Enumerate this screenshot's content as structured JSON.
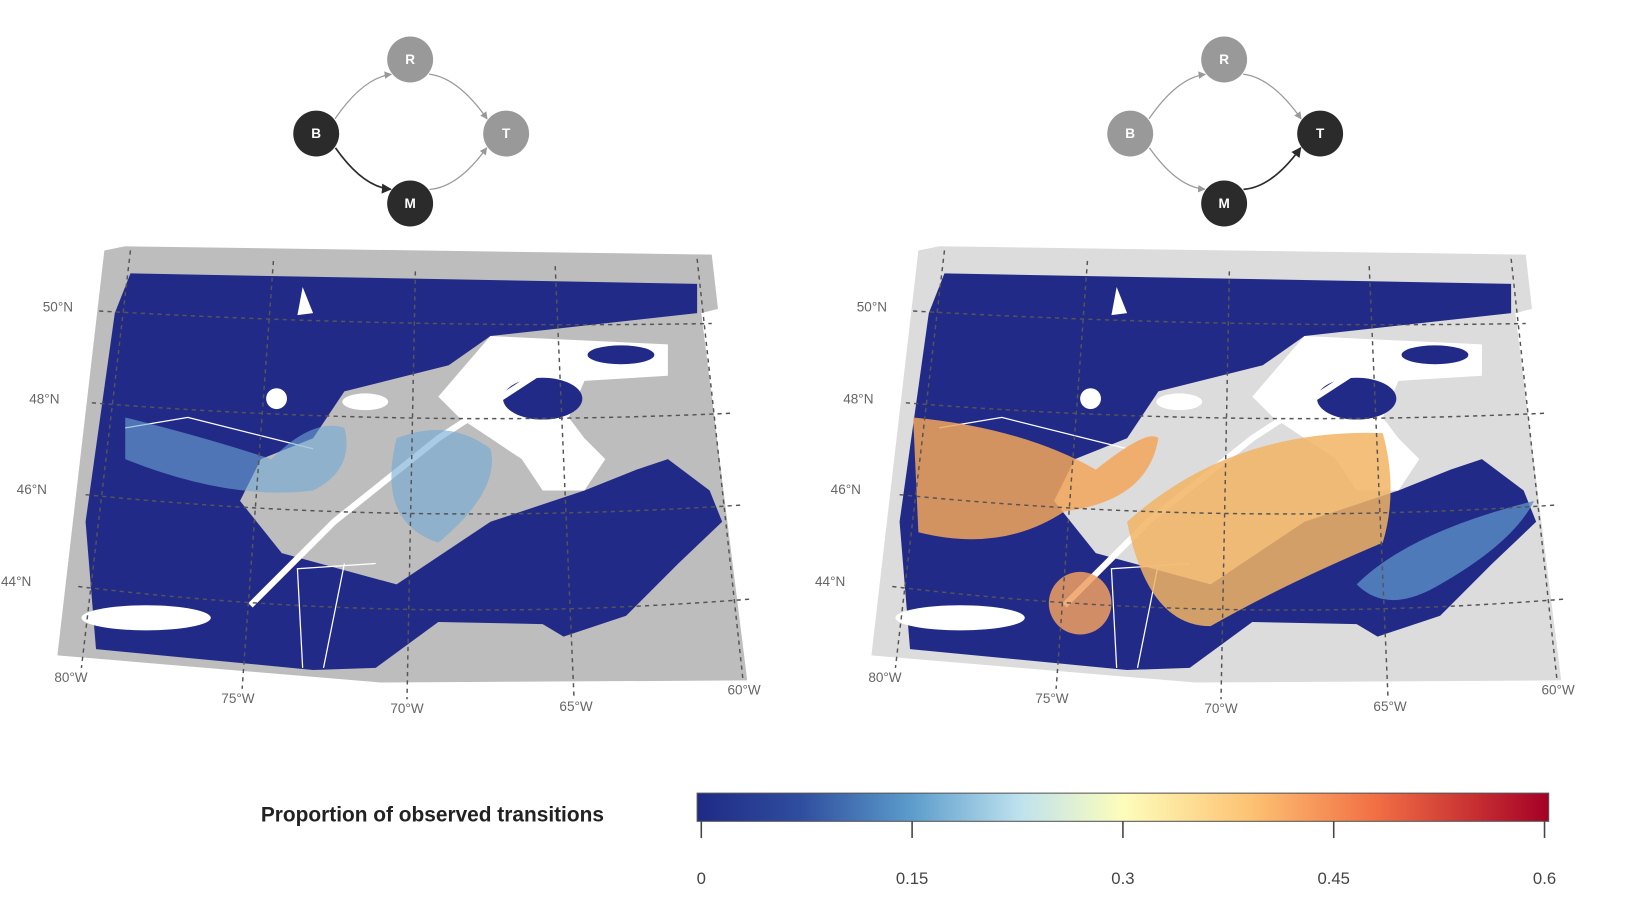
{
  "panels": [
    {
      "diagram": {
        "nodes": [
          {
            "label": "R",
            "color": "#999999"
          },
          {
            "label": "B",
            "color": "#2b2b2b"
          },
          {
            "label": "T",
            "color": "#999999"
          },
          {
            "label": "M",
            "color": "#2b2b2b"
          }
        ]
      },
      "lat_labels": [
        "50°N",
        "48°N",
        "46°N",
        "44°N"
      ],
      "lon_labels": [
        "80°W",
        "75°W",
        "70°W",
        "65°W",
        "60°W"
      ]
    },
    {
      "diagram": {
        "nodes": [
          {
            "label": "R",
            "color": "#999999"
          },
          {
            "label": "B",
            "color": "#999999"
          },
          {
            "label": "T",
            "color": "#2b2b2b"
          },
          {
            "label": "M",
            "color": "#2b2b2b"
          }
        ]
      },
      "lat_labels": [
        "50°N",
        "48°N",
        "46°N",
        "44°N"
      ],
      "lon_labels": [
        "80°W",
        "75°W",
        "70°W",
        "65°W",
        "60°W"
      ]
    }
  ],
  "legend": {
    "title": "Proportion of observed transitions",
    "range": [
      0,
      0.6
    ],
    "ticks": [
      0,
      0.15,
      0.3,
      0.45,
      0.6
    ]
  }
}
